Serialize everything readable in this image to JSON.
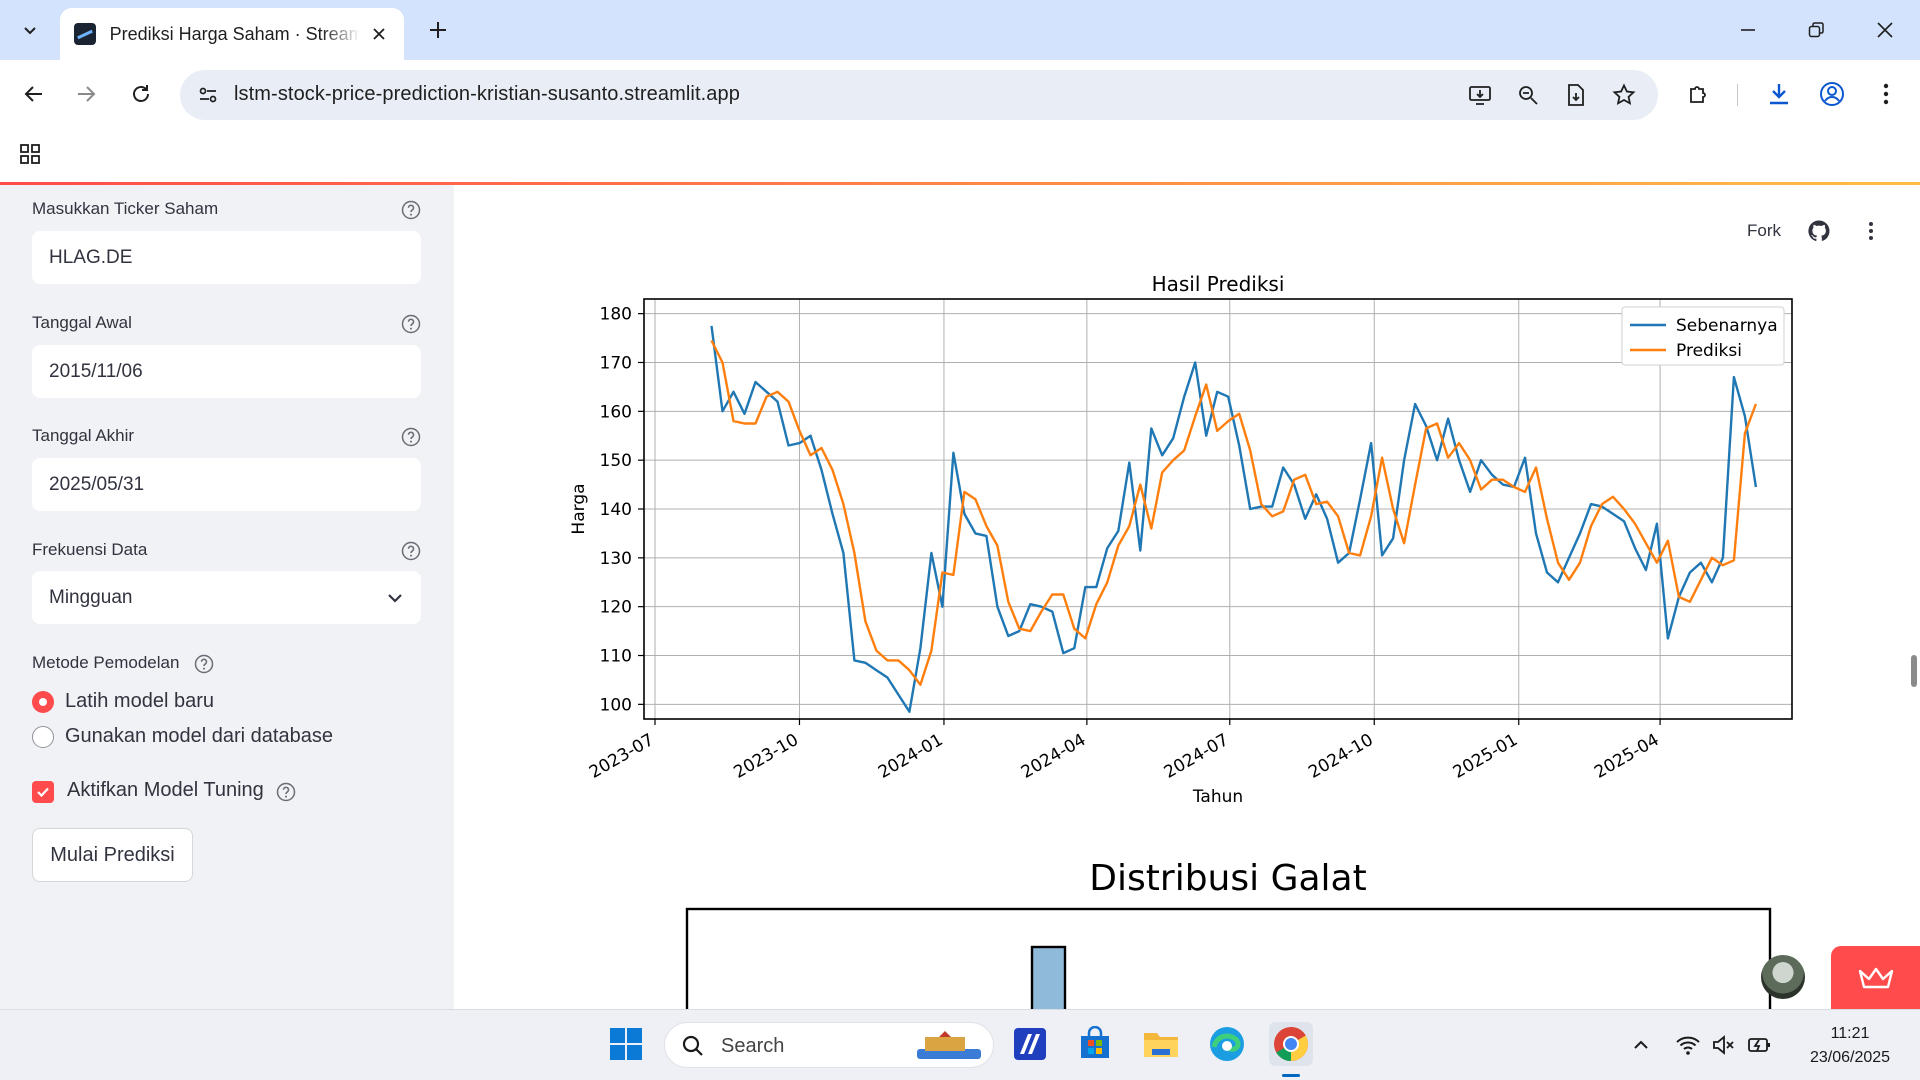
{
  "browser": {
    "tab_title": "Prediksi Harga Saham · Streamlit",
    "url": "lstm-stock-price-prediction-kristian-susanto.streamlit.app"
  },
  "sidebar": {
    "ticker": {
      "label": "Masukkan Ticker Saham",
      "value": "HLAG.DE"
    },
    "start_date": {
      "label": "Tanggal Awal",
      "value": "2015/11/06"
    },
    "end_date": {
      "label": "Tanggal Akhir",
      "value": "2025/05/31"
    },
    "frequency": {
      "label": "Frekuensi Data",
      "value": "Mingguan"
    },
    "method": {
      "label": "Metode Pemodelan",
      "options": [
        "Latih model baru",
        "Gunakan model dari database"
      ],
      "selected_index": 0
    },
    "tuning": {
      "label": "Aktifkan Model Tuning",
      "checked": true
    },
    "start_button": "Mulai Prediksi"
  },
  "header": {
    "fork_label": "Fork"
  },
  "taskbar": {
    "search_label": "Search",
    "time": "11:21",
    "date": "23/06/2025"
  },
  "chart_data": [
    {
      "type": "line",
      "title": "Hasil Prediksi",
      "xlabel": "Tahun",
      "ylabel": "Harga",
      "legend_position": "top-right",
      "grid": true,
      "xlim": [
        "2023-06-24",
        "2025-06-24"
      ],
      "ylim": [
        97,
        183
      ],
      "x_ticks": [
        "2023-07",
        "2023-10",
        "2024-01",
        "2024-04",
        "2024-07",
        "2024-10",
        "2025-01",
        "2025-04"
      ],
      "y_ticks": [
        100,
        110,
        120,
        130,
        140,
        150,
        160,
        170,
        180
      ],
      "series": [
        {
          "name": "Sebenarnya",
          "color": "#1f77b4",
          "points": [
            [
              "2023-08-06",
              177.5
            ],
            [
              "2023-08-13",
              160
            ],
            [
              "2023-08-20",
              164
            ],
            [
              "2023-08-27",
              159.5
            ],
            [
              "2023-09-03",
              166
            ],
            [
              "2023-09-10",
              164
            ],
            [
              "2023-09-17",
              162
            ],
            [
              "2023-09-24",
              153
            ],
            [
              "2023-10-01",
              153.5
            ],
            [
              "2023-10-08",
              155
            ],
            [
              "2023-10-15",
              148
            ],
            [
              "2023-10-22",
              139
            ],
            [
              "2023-10-29",
              131
            ],
            [
              "2023-11-05",
              109
            ],
            [
              "2023-11-12",
              108.5
            ],
            [
              "2023-11-19",
              107
            ],
            [
              "2023-11-26",
              105.5
            ],
            [
              "2023-12-03",
              102
            ],
            [
              "2023-12-10",
              98.5
            ],
            [
              "2023-12-17",
              111.5
            ],
            [
              "2023-12-24",
              131
            ],
            [
              "2023-12-31",
              120
            ],
            [
              "2024-01-07",
              151.5
            ],
            [
              "2024-01-14",
              139
            ],
            [
              "2024-01-21",
              135
            ],
            [
              "2024-01-28",
              134.5
            ],
            [
              "2024-02-04",
              120
            ],
            [
              "2024-02-11",
              114
            ],
            [
              "2024-02-18",
              115
            ],
            [
              "2024-02-25",
              120.5
            ],
            [
              "2024-03-03",
              120
            ],
            [
              "2024-03-10",
              119
            ],
            [
              "2024-03-17",
              110.5
            ],
            [
              "2024-03-24",
              111.5
            ],
            [
              "2024-03-31",
              124
            ],
            [
              "2024-04-07",
              124
            ],
            [
              "2024-04-14",
              132
            ],
            [
              "2024-04-21",
              135.5
            ],
            [
              "2024-04-28",
              149.5
            ],
            [
              "2024-05-05",
              131.5
            ],
            [
              "2024-05-12",
              156.5
            ],
            [
              "2024-05-19",
              151
            ],
            [
              "2024-05-26",
              154.5
            ],
            [
              "2024-06-02",
              163
            ],
            [
              "2024-06-09",
              170
            ],
            [
              "2024-06-16",
              155
            ],
            [
              "2024-06-23",
              164
            ],
            [
              "2024-06-30",
              163
            ],
            [
              "2024-07-07",
              153
            ],
            [
              "2024-07-14",
              140
            ],
            [
              "2024-07-21",
              140.5
            ],
            [
              "2024-07-28",
              140.5
            ],
            [
              "2024-08-04",
              148.5
            ],
            [
              "2024-08-11",
              145
            ],
            [
              "2024-08-18",
              138
            ],
            [
              "2024-08-25",
              143
            ],
            [
              "2024-09-01",
              138
            ],
            [
              "2024-09-08",
              129
            ],
            [
              "2024-09-15",
              131
            ],
            [
              "2024-09-22",
              142
            ],
            [
              "2024-09-29",
              153.5
            ],
            [
              "2024-10-06",
              130.5
            ],
            [
              "2024-10-13",
              134
            ],
            [
              "2024-10-20",
              150
            ],
            [
              "2024-10-27",
              161.5
            ],
            [
              "2024-11-03",
              157
            ],
            [
              "2024-11-10",
              150
            ],
            [
              "2024-11-17",
              158.5
            ],
            [
              "2024-11-24",
              150
            ],
            [
              "2024-12-01",
              143.5
            ],
            [
              "2024-12-08",
              150
            ],
            [
              "2024-12-15",
              147
            ],
            [
              "2024-12-22",
              145
            ],
            [
              "2024-12-29",
              144.5
            ],
            [
              "2025-01-05",
              150.5
            ],
            [
              "2025-01-12",
              135
            ],
            [
              "2025-01-19",
              127
            ],
            [
              "2025-01-26",
              125
            ],
            [
              "2025-02-02",
              130
            ],
            [
              "2025-02-09",
              135
            ],
            [
              "2025-02-16",
              141
            ],
            [
              "2025-02-23",
              140.5
            ],
            [
              "2025-03-02",
              139
            ],
            [
              "2025-03-09",
              137.5
            ],
            [
              "2025-03-16",
              132
            ],
            [
              "2025-03-23",
              127.5
            ],
            [
              "2025-03-30",
              137
            ],
            [
              "2025-04-06",
              113.5
            ],
            [
              "2025-04-13",
              122
            ],
            [
              "2025-04-20",
              127
            ],
            [
              "2025-04-27",
              129
            ],
            [
              "2025-05-04",
              125
            ],
            [
              "2025-05-11",
              130
            ],
            [
              "2025-05-18",
              167
            ],
            [
              "2025-05-25",
              159
            ],
            [
              "2025-06-01",
              144.5
            ]
          ]
        },
        {
          "name": "Prediksi",
          "color": "#ff7f0e",
          "points": [
            [
              "2023-08-06",
              174.5
            ],
            [
              "2023-08-13",
              170
            ],
            [
              "2023-08-20",
              158
            ],
            [
              "2023-08-27",
              157.5
            ],
            [
              "2023-09-03",
              157.5
            ],
            [
              "2023-09-10",
              163
            ],
            [
              "2023-09-17",
              164
            ],
            [
              "2023-09-24",
              162
            ],
            [
              "2023-10-01",
              156
            ],
            [
              "2023-10-08",
              151
            ],
            [
              "2023-10-15",
              152.5
            ],
            [
              "2023-10-22",
              148
            ],
            [
              "2023-10-29",
              141
            ],
            [
              "2023-11-05",
              131
            ],
            [
              "2023-11-12",
              117
            ],
            [
              "2023-11-19",
              111
            ],
            [
              "2023-11-26",
              109
            ],
            [
              "2023-12-03",
              109
            ],
            [
              "2023-12-10",
              107
            ],
            [
              "2023-12-17",
              104
            ],
            [
              "2023-12-24",
              111
            ],
            [
              "2023-12-31",
              127
            ],
            [
              "2024-01-07",
              126.5
            ],
            [
              "2024-01-14",
              143.5
            ],
            [
              "2024-01-21",
              142
            ],
            [
              "2024-01-28",
              136.5
            ],
            [
              "2024-02-04",
              132.5
            ],
            [
              "2024-02-11",
              121
            ],
            [
              "2024-02-18",
              115.5
            ],
            [
              "2024-02-25",
              115
            ],
            [
              "2024-03-03",
              119
            ],
            [
              "2024-03-10",
              122.5
            ],
            [
              "2024-03-17",
              122.5
            ],
            [
              "2024-03-24",
              115.5
            ],
            [
              "2024-03-31",
              113.5
            ],
            [
              "2024-04-07",
              120.5
            ],
            [
              "2024-04-14",
              125
            ],
            [
              "2024-04-21",
              132.5
            ],
            [
              "2024-04-28",
              136.5
            ],
            [
              "2024-05-05",
              145
            ],
            [
              "2024-05-12",
              136
            ],
            [
              "2024-05-19",
              147.5
            ],
            [
              "2024-05-26",
              150
            ],
            [
              "2024-06-02",
              152
            ],
            [
              "2024-06-09",
              159
            ],
            [
              "2024-06-16",
              165.5
            ],
            [
              "2024-06-23",
              156
            ],
            [
              "2024-06-30",
              158
            ],
            [
              "2024-07-07",
              159.5
            ],
            [
              "2024-07-14",
              152
            ],
            [
              "2024-07-21",
              141
            ],
            [
              "2024-07-28",
              138.5
            ],
            [
              "2024-08-04",
              139.5
            ],
            [
              "2024-08-11",
              146
            ],
            [
              "2024-08-18",
              147
            ],
            [
              "2024-08-25",
              141
            ],
            [
              "2024-09-01",
              141.5
            ],
            [
              "2024-09-08",
              138.5
            ],
            [
              "2024-09-15",
              131
            ],
            [
              "2024-09-22",
              130.5
            ],
            [
              "2024-09-29",
              138.5
            ],
            [
              "2024-10-06",
              150.5
            ],
            [
              "2024-10-13",
              140
            ],
            [
              "2024-10-20",
              133
            ],
            [
              "2024-10-27",
              145
            ],
            [
              "2024-11-03",
              156.5
            ],
            [
              "2024-11-10",
              157.5
            ],
            [
              "2024-11-17",
              150.5
            ],
            [
              "2024-11-24",
              153.5
            ],
            [
              "2024-12-01",
              150
            ],
            [
              "2024-12-08",
              144
            ],
            [
              "2024-12-15",
              146
            ],
            [
              "2024-12-22",
              146
            ],
            [
              "2024-12-29",
              144.5
            ],
            [
              "2025-01-05",
              143.5
            ],
            [
              "2025-01-12",
              148.5
            ],
            [
              "2025-01-19",
              138
            ],
            [
              "2025-01-26",
              129
            ],
            [
              "2025-02-02",
              125.5
            ],
            [
              "2025-02-09",
              129
            ],
            [
              "2025-02-16",
              136.5
            ],
            [
              "2025-02-23",
              141
            ],
            [
              "2025-03-02",
              142.5
            ],
            [
              "2025-03-09",
              140
            ],
            [
              "2025-03-16",
              137
            ],
            [
              "2025-03-23",
              133
            ],
            [
              "2025-03-30",
              129
            ],
            [
              "2025-04-06",
              133.5
            ],
            [
              "2025-04-13",
              122
            ],
            [
              "2025-04-20",
              121
            ],
            [
              "2025-04-27",
              125.5
            ],
            [
              "2025-05-04",
              130
            ],
            [
              "2025-05-11",
              128.5
            ],
            [
              "2025-05-18",
              129.5
            ],
            [
              "2025-05-25",
              155.5
            ],
            [
              "2025-06-01",
              161.5
            ]
          ]
        }
      ]
    },
    {
      "type": "bar",
      "title": "Distribusi Galat",
      "partially_visible": true
    }
  ]
}
